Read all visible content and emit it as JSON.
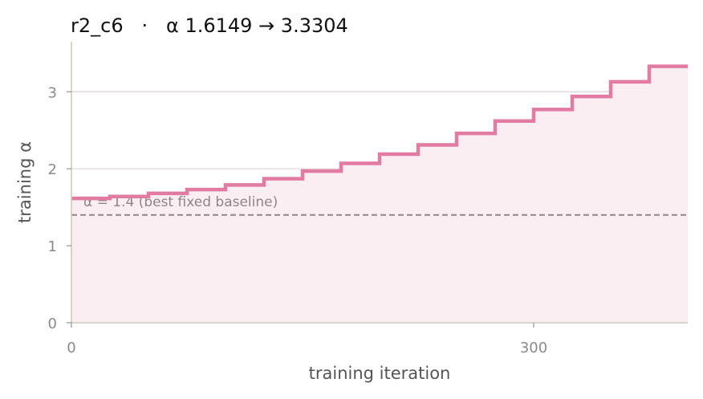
{
  "chart_data": {
    "type": "line",
    "step": true,
    "title": "r2_c6   ·   α 1.6149 → 3.3304",
    "xlabel": "training iteration",
    "ylabel": "training α",
    "xlim": [
      0,
      400
    ],
    "ylim": [
      0,
      3.65
    ],
    "xticks": [
      0,
      300
    ],
    "yticks": [
      0,
      1,
      2,
      3
    ],
    "grid": "horizontal",
    "colors": {
      "line": "#e27ba2",
      "fill": "#fbeef2",
      "baseline": "#8f8589",
      "grid": "#e2d8dc",
      "spine": "#c8c8bc"
    },
    "series": [
      {
        "x": [
          0,
          25,
          50,
          75,
          100,
          125,
          150,
          175,
          200,
          225,
          250,
          275,
          300,
          325,
          350,
          375,
          400
        ],
        "y": [
          1.6149,
          1.64,
          1.68,
          1.73,
          1.79,
          1.87,
          1.97,
          2.07,
          2.19,
          2.31,
          2.46,
          2.62,
          2.77,
          2.94,
          3.13,
          3.33,
          3.33
        ]
      }
    ],
    "reference_line": {
      "y": 1.4,
      "label": "α = 1.4 (best fixed baseline)"
    }
  }
}
